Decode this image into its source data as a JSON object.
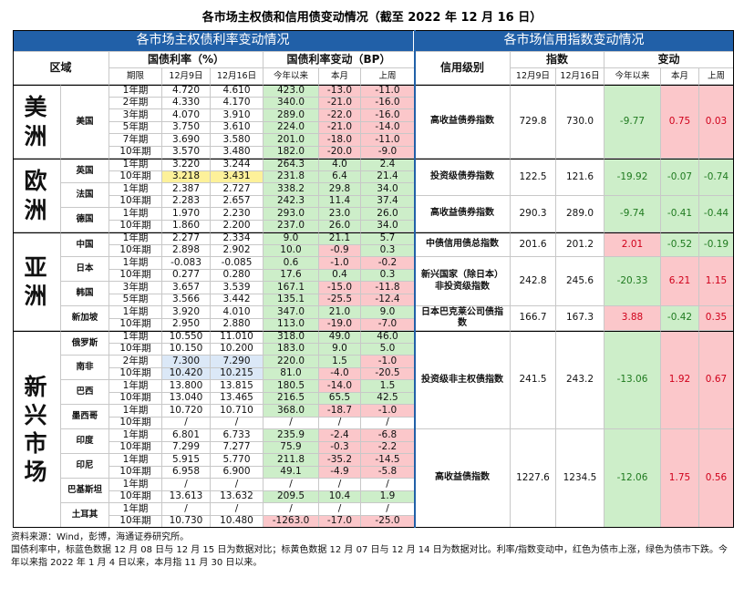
{
  "title": "各市场主权债和信用债变动情况（截至 2022 年 12 月 16 日）",
  "sovereign": {
    "heading": "各市场主权债利率变动情况",
    "headers": {
      "region": "区域",
      "rate": "国债利率（%）",
      "change": "国债利率变动（BP）",
      "term": "期限",
      "d1": "12月9日",
      "d2": "12月16日",
      "ytd": "今年以来",
      "mtd": "本月",
      "wtd": "上周"
    },
    "positive_color": "#cdeec9",
    "negative_color": "#fbc7ca",
    "regions": [
      {
        "name": "美洲",
        "countries": [
          {
            "name": "美国",
            "rows": [
              {
                "cells": [
                  "1年期",
                  "4.720",
                  "4.610",
                  "423.0",
                  "-13.0",
                  "-11.0"
                ]
              },
              {
                "cells": [
                  "2年期",
                  "4.330",
                  "4.170",
                  "340.0",
                  "-21.0",
                  "-16.0"
                ]
              },
              {
                "cells": [
                  "3年期",
                  "4.070",
                  "3.910",
                  "289.0",
                  "-22.0",
                  "-16.0"
                ]
              },
              {
                "cells": [
                  "5年期",
                  "3.750",
                  "3.610",
                  "224.0",
                  "-21.0",
                  "-14.0"
                ]
              },
              {
                "cells": [
                  "7年期",
                  "3.690",
                  "3.580",
                  "201.0",
                  "-18.0",
                  "-11.0"
                ]
              },
              {
                "cells": [
                  "10年期",
                  "3.570",
                  "3.480",
                  "182.0",
                  "-20.0",
                  "-9.0"
                ]
              }
            ]
          }
        ]
      },
      {
        "name": "欧洲",
        "countries": [
          {
            "name": "英国",
            "rows": [
              {
                "cells": [
                  "1年期",
                  "3.220",
                  "3.244",
                  "264.3",
                  "4.0",
                  "2.4"
                ]
              },
              {
                "cells": [
                  "10年期",
                  "3.218",
                  "3.431",
                  "231.8",
                  "6.4",
                  "21.4"
                ],
                "highlight": "#fdf19a"
              }
            ]
          },
          {
            "name": "法国",
            "rows": [
              {
                "cells": [
                  "1年期",
                  "2.387",
                  "2.727",
                  "338.2",
                  "29.8",
                  "34.0"
                ]
              },
              {
                "cells": [
                  "10年期",
                  "2.283",
                  "2.657",
                  "242.3",
                  "11.4",
                  "37.4"
                ]
              }
            ]
          },
          {
            "name": "德国",
            "rows": [
              {
                "cells": [
                  "1年期",
                  "1.970",
                  "2.230",
                  "293.0",
                  "23.0",
                  "26.0"
                ]
              },
              {
                "cells": [
                  "10年期",
                  "1.860",
                  "2.200",
                  "237.0",
                  "26.0",
                  "34.0"
                ]
              }
            ]
          }
        ]
      },
      {
        "name": "亚洲",
        "countries": [
          {
            "name": "中国",
            "rows": [
              {
                "cells": [
                  "1年期",
                  "2.277",
                  "2.334",
                  "9.0",
                  "21.1",
                  "5.7"
                ]
              },
              {
                "cells": [
                  "10年期",
                  "2.898",
                  "2.902",
                  "10.0",
                  "-0.9",
                  "0.3"
                ]
              }
            ]
          },
          {
            "name": "日本",
            "rows": [
              {
                "cells": [
                  "1年期",
                  "-0.083",
                  "-0.085",
                  "0.6",
                  "-1.0",
                  "-0.2"
                ]
              },
              {
                "cells": [
                  "10年期",
                  "0.277",
                  "0.280",
                  "17.6",
                  "0.4",
                  "0.3"
                ]
              }
            ]
          },
          {
            "name": "韩国",
            "rows": [
              {
                "cells": [
                  "3年期",
                  "3.657",
                  "3.539",
                  "167.1",
                  "-15.0",
                  "-11.8"
                ]
              },
              {
                "cells": [
                  "5年期",
                  "3.566",
                  "3.442",
                  "135.1",
                  "-25.5",
                  "-12.4"
                ]
              }
            ]
          },
          {
            "name": "新加坡",
            "rows": [
              {
                "cells": [
                  "1年期",
                  "3.920",
                  "4.010",
                  "347.0",
                  "21.0",
                  "9.0"
                ]
              },
              {
                "cells": [
                  "10年期",
                  "2.950",
                  "2.880",
                  "113.0",
                  "-19.0",
                  "-7.0"
                ]
              }
            ]
          }
        ]
      },
      {
        "name": "新兴市场",
        "countries": [
          {
            "name": "俄罗斯",
            "rows": [
              {
                "cells": [
                  "1年期",
                  "10.550",
                  "11.010",
                  "318.0",
                  "49.0",
                  "46.0"
                ]
              },
              {
                "cells": [
                  "10年期",
                  "10.150",
                  "10.200",
                  "183.0",
                  "9.0",
                  "5.0"
                ]
              }
            ]
          },
          {
            "name": "南非",
            "rows": [
              {
                "cells": [
                  "2年期",
                  "7.300",
                  "7.290",
                  "220.0",
                  "1.5",
                  "-1.0"
                ],
                "highlight": "#dbe8f7"
              },
              {
                "cells": [
                  "10年期",
                  "10.420",
                  "10.215",
                  "81.0",
                  "-4.0",
                  "-20.5"
                ],
                "highlight": "#dbe8f7"
              }
            ]
          },
          {
            "name": "巴西",
            "rows": [
              {
                "cells": [
                  "1年期",
                  "13.800",
                  "13.815",
                  "180.5",
                  "-14.0",
                  "1.5"
                ]
              },
              {
                "cells": [
                  "10年期",
                  "13.040",
                  "13.465",
                  "216.5",
                  "65.5",
                  "42.5"
                ]
              }
            ]
          },
          {
            "name": "墨西哥",
            "rows": [
              {
                "cells": [
                  "1年期",
                  "10.720",
                  "10.710",
                  "368.0",
                  "-18.7",
                  "-1.0"
                ]
              },
              {
                "cells": [
                  "10年期",
                  "/",
                  "/",
                  "/",
                  "/",
                  "/"
                ]
              }
            ]
          },
          {
            "name": "印度",
            "rows": [
              {
                "cells": [
                  "1年期",
                  "6.801",
                  "6.733",
                  "235.9",
                  "-2.4",
                  "-6.8"
                ]
              },
              {
                "cells": [
                  "10年期",
                  "7.299",
                  "7.277",
                  "75.9",
                  "-0.3",
                  "-2.2"
                ]
              }
            ]
          },
          {
            "name": "印尼",
            "rows": [
              {
                "cells": [
                  "1年期",
                  "5.915",
                  "5.770",
                  "211.8",
                  "-35.2",
                  "-14.5"
                ]
              },
              {
                "cells": [
                  "10年期",
                  "6.958",
                  "6.900",
                  "49.1",
                  "-4.9",
                  "-5.8"
                ]
              }
            ]
          },
          {
            "name": "巴基斯坦",
            "rows": [
              {
                "cells": [
                  "1年期",
                  "/",
                  "/",
                  "/",
                  "/",
                  "/"
                ]
              },
              {
                "cells": [
                  "10年期",
                  "13.613",
                  "13.632",
                  "209.5",
                  "10.4",
                  "1.9"
                ]
              }
            ]
          },
          {
            "name": "土耳其",
            "rows": [
              {
                "cells": [
                  "1年期",
                  "/",
                  "/",
                  "/",
                  "/",
                  "/"
                ]
              },
              {
                "cells": [
                  "10年期",
                  "10.730",
                  "10.480",
                  "-1263.0",
                  "-17.0",
                  "-25.0"
                ]
              }
            ]
          }
        ]
      }
    ]
  },
  "credit": {
    "heading": "各市场信用指数变动情况",
    "headers": {
      "grade": "信用级别",
      "index": "指数",
      "change": "变动",
      "d1": "12月9日",
      "d2": "12月16日",
      "ytd": "今年以来",
      "mtd": "本月",
      "wtd": "上周"
    },
    "positive_color": "#fbc7ca",
    "negative_color": "#cdeec9",
    "positive_text": "#d0001a",
    "negative_text": "#1f7a1f",
    "regions": [
      {
        "items": [
          {
            "name": "高收益债券指数",
            "cells": [
              "729.8",
              "730.0",
              "-9.77",
              "0.75",
              "0.03"
            ]
          }
        ]
      },
      {
        "items": [
          {
            "name": "投资级债券指数",
            "cells": [
              "122.5",
              "121.6",
              "-19.92",
              "-0.07",
              "-0.74"
            ]
          },
          {
            "name": "高收益债券指数",
            "cells": [
              "290.3",
              "289.0",
              "-9.74",
              "-0.41",
              "-0.44"
            ]
          }
        ]
      },
      {
        "items": [
          {
            "name": "中债信用债总指数",
            "cells": [
              "201.6",
              "201.2",
              "2.01",
              "-0.52",
              "-0.19"
            ]
          },
          {
            "name": "新兴国家（除日本）非投资级指数",
            "cells": [
              "242.8",
              "245.6",
              "-20.33",
              "6.21",
              "1.15"
            ]
          },
          {
            "name": "日本巴克莱公司债指数",
            "cells": [
              "166.7",
              "167.3",
              "3.88",
              "-0.42",
              "0.35"
            ]
          }
        ]
      },
      {
        "items": [
          {
            "name": "投资级非主权债指数",
            "cells": [
              "241.5",
              "243.2",
              "-13.06",
              "1.92",
              "0.67"
            ]
          },
          {
            "name": "高收益债指数",
            "cells": [
              "1227.6",
              "1234.5",
              "-12.06",
              "1.75",
              "0.56"
            ]
          }
        ]
      }
    ]
  },
  "notes": [
    "资料来源：Wind，彭博，海通证券研究所。",
    "国债利率中，标蓝色数据 12 月 08 日与 12 月 15 日为数据对比；标黄色数据 12 月 07 日与 12 月 14 日为数据对比。利率/指数变动中，红色为债市上涨，绿色为债市下跌。今年以来指 2022 年 1 月 4 日以来，本月指 11 月 30 日以来。"
  ]
}
